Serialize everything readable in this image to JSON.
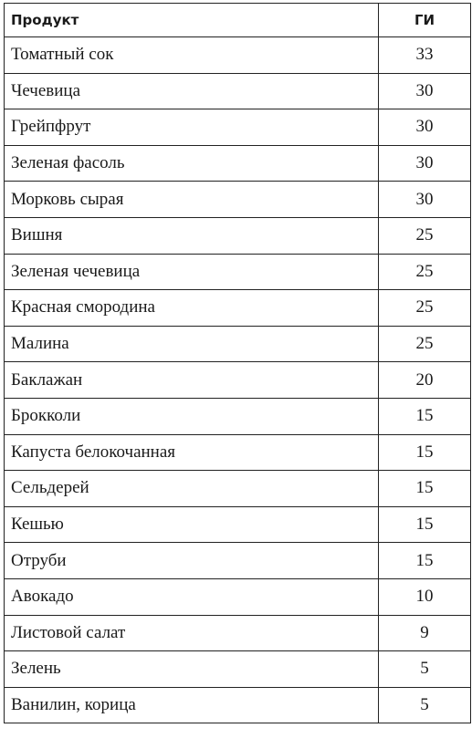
{
  "table": {
    "headers": {
      "product": "Продукт",
      "gi": "ГИ"
    },
    "rows": [
      {
        "product": "Томатный сок",
        "gi": "33"
      },
      {
        "product": "Чечевица",
        "gi": "30"
      },
      {
        "product": "Грейпфрут",
        "gi": "30"
      },
      {
        "product": "Зеленая фасоль",
        "gi": "30"
      },
      {
        "product": "Морковь сырая",
        "gi": "30"
      },
      {
        "product": "Вишня",
        "gi": "25"
      },
      {
        "product": "Зеленая чечевица",
        "gi": "25"
      },
      {
        "product": "Красная смородина",
        "gi": "25"
      },
      {
        "product": "Малина",
        "gi": "25"
      },
      {
        "product": "Баклажан",
        "gi": "20"
      },
      {
        "product": "Брокколи",
        "gi": "15"
      },
      {
        "product": "Капуста белокочанная",
        "gi": "15"
      },
      {
        "product": "Сельдерей",
        "gi": "15"
      },
      {
        "product": "Кешью",
        "gi": "15"
      },
      {
        "product": "Отруби",
        "gi": "15"
      },
      {
        "product": "Авокадо",
        "gi": "10"
      },
      {
        "product": "Листовой салат",
        "gi": "9"
      },
      {
        "product": "Зелень",
        "gi": "5"
      },
      {
        "product": "Ванилин, корица",
        "gi": "5"
      }
    ]
  }
}
